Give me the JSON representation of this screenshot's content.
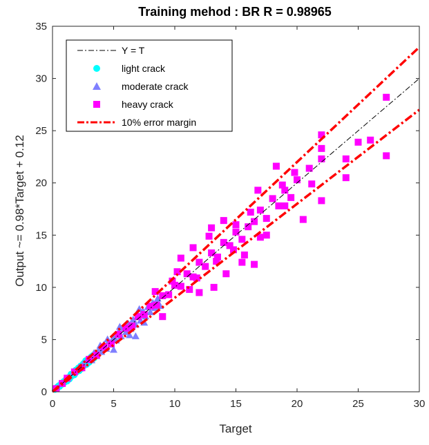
{
  "chart_data": {
    "type": "scatter",
    "title": "Training mehod : BR R = 0.98965",
    "xlabel": "Target",
    "ylabel": "Output ~= 0.98*Target + 0.12",
    "xlim": [
      0,
      30
    ],
    "ylim": [
      0,
      35
    ],
    "xticks": [
      0,
      5,
      10,
      15,
      20,
      25,
      30
    ],
    "yticks": [
      0,
      5,
      10,
      15,
      20,
      25,
      30,
      35
    ],
    "grid": false,
    "legend_position": "top-left",
    "lines": [
      {
        "name": "Y = T",
        "color": "#000000",
        "style": "dash-dot",
        "x": [
          0,
          30
        ],
        "y": [
          0,
          30
        ]
      },
      {
        "name": "10% error margin",
        "color": "#ff0000",
        "style": "dash-dot-thick",
        "x": [
          0,
          30
        ],
        "y": [
          0,
          33
        ]
      },
      {
        "name": "",
        "color": "#ff0000",
        "style": "dash-dot-thick",
        "x": [
          0,
          30
        ],
        "y": [
          0,
          27
        ]
      }
    ],
    "series": [
      {
        "name": "light crack",
        "color": "#00ffff",
        "marker": "circle",
        "points": [
          [
            0.2,
            0.2
          ],
          [
            0.3,
            0.4
          ],
          [
            0.4,
            0.3
          ],
          [
            0.5,
            0.6
          ],
          [
            0.6,
            0.5
          ],
          [
            0.7,
            0.8
          ],
          [
            0.8,
            0.7
          ],
          [
            0.9,
            1.0
          ],
          [
            1.0,
            0.9
          ],
          [
            1.1,
            1.2
          ],
          [
            1.2,
            1.0
          ],
          [
            1.3,
            1.4
          ],
          [
            1.4,
            1.2
          ],
          [
            1.5,
            1.7
          ],
          [
            1.6,
            1.5
          ],
          [
            1.7,
            1.8
          ],
          [
            1.8,
            1.6
          ],
          [
            1.9,
            2.1
          ],
          [
            2.0,
            1.9
          ],
          [
            2.1,
            2.3
          ],
          [
            2.2,
            2.0
          ],
          [
            2.3,
            2.5
          ],
          [
            2.4,
            2.2
          ],
          [
            2.5,
            2.7
          ],
          [
            2.6,
            2.5
          ],
          [
            2.7,
            3.0
          ],
          [
            2.8,
            2.6
          ],
          [
            2.9,
            3.1
          ],
          [
            3.0,
            2.8
          ],
          [
            3.1,
            3.3
          ],
          [
            3.2,
            3.0
          ],
          [
            3.3,
            3.5
          ],
          [
            3.4,
            3.2
          ],
          [
            3.5,
            3.7
          ],
          [
            0.4,
            0.5
          ],
          [
            0.9,
            0.8
          ],
          [
            1.5,
            1.4
          ],
          [
            2.1,
            2.0
          ],
          [
            2.6,
            2.8
          ],
          [
            3.2,
            3.4
          ]
        ]
      },
      {
        "name": "moderate crack",
        "color": "#7f7fff",
        "marker": "triangle",
        "points": [
          [
            2.5,
            2.6
          ],
          [
            2.8,
            3.0
          ],
          [
            3.0,
            3.2
          ],
          [
            3.2,
            3.0
          ],
          [
            3.4,
            3.7
          ],
          [
            3.6,
            3.4
          ],
          [
            3.8,
            4.0
          ],
          [
            4.0,
            3.8
          ],
          [
            4.2,
            4.5
          ],
          [
            4.4,
            4.1
          ],
          [
            4.6,
            4.8
          ],
          [
            4.8,
            4.5
          ],
          [
            5.0,
            5.2
          ],
          [
            5.2,
            4.9
          ],
          [
            5.4,
            5.7
          ],
          [
            5.6,
            5.3
          ],
          [
            5.8,
            6.1
          ],
          [
            6.0,
            5.7
          ],
          [
            6.2,
            6.5
          ],
          [
            6.4,
            6.0
          ],
          [
            6.6,
            6.9
          ],
          [
            6.8,
            6.4
          ],
          [
            7.0,
            7.3
          ],
          [
            7.2,
            6.8
          ],
          [
            7.4,
            7.7
          ],
          [
            7.6,
            7.2
          ],
          [
            7.8,
            8.1
          ],
          [
            8.0,
            7.6
          ],
          [
            8.2,
            8.5
          ],
          [
            8.4,
            8.0
          ],
          [
            6.8,
            5.3
          ],
          [
            5.0,
            4.0
          ],
          [
            4.5,
            5.0
          ],
          [
            7.1,
            7.9
          ],
          [
            6.3,
            5.4
          ],
          [
            8.6,
            8.9
          ],
          [
            8.8,
            8.2
          ],
          [
            3.9,
            4.4
          ],
          [
            5.5,
            6.2
          ],
          [
            7.5,
            6.6
          ]
        ]
      },
      {
        "name": "heavy crack",
        "color": "#ff00ff",
        "marker": "square",
        "points": [
          [
            0.3,
            0.3
          ],
          [
            0.8,
            0.8
          ],
          [
            1.2,
            1.3
          ],
          [
            1.8,
            1.9
          ],
          [
            2.4,
            2.3
          ],
          [
            3.0,
            3.1
          ],
          [
            3.6,
            3.5
          ],
          [
            4.2,
            4.3
          ],
          [
            4.8,
            4.6
          ],
          [
            5.4,
            5.5
          ],
          [
            6.0,
            6.1
          ],
          [
            6.5,
            6.3
          ],
          [
            7.0,
            7.2
          ],
          [
            7.5,
            7.4
          ],
          [
            8.0,
            8.2
          ],
          [
            8.5,
            8.3
          ],
          [
            9.0,
            9.2
          ],
          [
            9.5,
            9.3
          ],
          [
            10.0,
            10.2
          ],
          [
            10.5,
            10.1
          ],
          [
            11.0,
            11.3
          ],
          [
            11.5,
            11.0
          ],
          [
            12.0,
            12.4
          ],
          [
            12.5,
            12.0
          ],
          [
            13.0,
            13.3
          ],
          [
            13.5,
            12.9
          ],
          [
            14.0,
            14.3
          ],
          [
            14.5,
            14.0
          ],
          [
            15.0,
            15.3
          ],
          [
            15.5,
            14.6
          ],
          [
            16.0,
            15.8
          ],
          [
            16.5,
            16.3
          ],
          [
            17.0,
            17.4
          ],
          [
            17.5,
            16.6
          ],
          [
            18.0,
            18.5
          ],
          [
            18.5,
            17.8
          ],
          [
            19.0,
            19.3
          ],
          [
            19.5,
            18.6
          ],
          [
            20.0,
            20.3
          ],
          [
            21.0,
            21.4
          ],
          [
            22.0,
            22.3
          ],
          [
            22.0,
            24.6
          ],
          [
            22.0,
            18.3
          ],
          [
            22.0,
            23.3
          ],
          [
            24.0,
            22.3
          ],
          [
            24.0,
            20.5
          ],
          [
            25.0,
            23.9
          ],
          [
            26.0,
            24.1
          ],
          [
            27.3,
            22.6
          ],
          [
            27.3,
            28.2
          ],
          [
            13.0,
            15.7
          ],
          [
            14.0,
            16.4
          ],
          [
            15.5,
            12.4
          ],
          [
            16.5,
            12.2
          ],
          [
            12.0,
            9.5
          ],
          [
            13.2,
            10.0
          ],
          [
            10.5,
            12.8
          ],
          [
            11.5,
            13.8
          ],
          [
            17.5,
            15.0
          ],
          [
            19.0,
            17.8
          ],
          [
            20.5,
            16.5
          ],
          [
            18.3,
            21.6
          ],
          [
            16.8,
            19.3
          ],
          [
            15.0,
            16.0
          ],
          [
            14.2,
            11.3
          ],
          [
            9.0,
            7.2
          ],
          [
            10.2,
            11.5
          ],
          [
            8.4,
            9.6
          ],
          [
            12.8,
            14.9
          ],
          [
            16.2,
            17.2
          ],
          [
            14.8,
            13.6
          ],
          [
            13.4,
            12.5
          ],
          [
            11.8,
            10.9
          ],
          [
            17.0,
            14.8
          ],
          [
            18.8,
            19.8
          ],
          [
            19.8,
            21.0
          ],
          [
            21.2,
            19.9
          ],
          [
            15.7,
            13.1
          ],
          [
            9.8,
            10.6
          ],
          [
            11.2,
            9.8
          ]
        ]
      }
    ]
  },
  "legend": {
    "items": [
      {
        "label": "Y = T"
      },
      {
        "label": "light crack"
      },
      {
        "label": "moderate crack"
      },
      {
        "label": "heavy crack"
      },
      {
        "label": "10% error margin"
      }
    ]
  }
}
